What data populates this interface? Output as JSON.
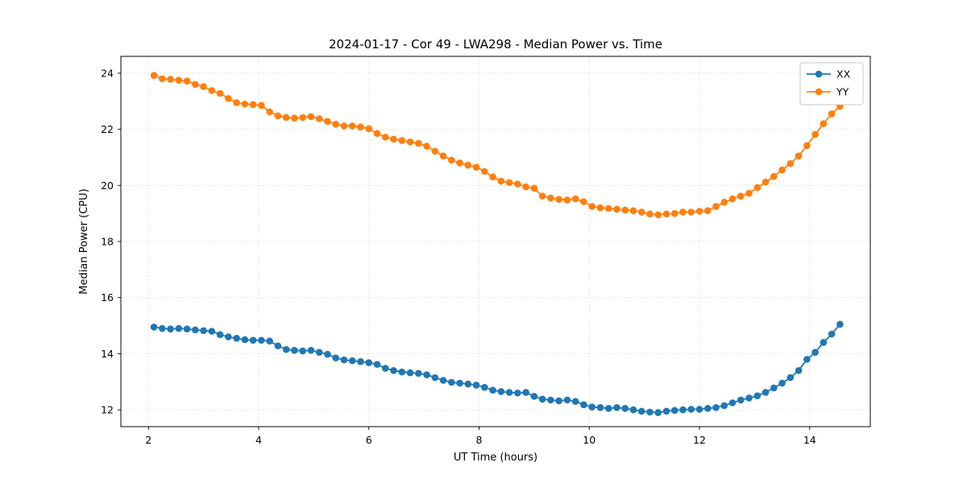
{
  "chart_data": {
    "type": "line",
    "title": "2024-01-17 - Cor 49 - LWA298 - Median Power vs. Time",
    "xlabel": "UT Time (hours)",
    "ylabel": "Median Power (CPU)",
    "xlim": [
      1.5,
      15.1
    ],
    "ylim": [
      11.4,
      24.6
    ],
    "xticks": [
      2,
      4,
      6,
      8,
      10,
      12,
      14
    ],
    "yticks": [
      12,
      14,
      16,
      18,
      20,
      22,
      24
    ],
    "grid": true,
    "legend_position": "upper right",
    "marker": "o",
    "x": [
      2.1,
      2.25,
      2.4,
      2.55,
      2.7,
      2.85,
      3.0,
      3.15,
      3.3,
      3.45,
      3.6,
      3.75,
      3.9,
      4.05,
      4.2,
      4.35,
      4.5,
      4.65,
      4.8,
      4.95,
      5.1,
      5.25,
      5.4,
      5.55,
      5.7,
      5.85,
      6.0,
      6.15,
      6.3,
      6.45,
      6.6,
      6.75,
      6.9,
      7.05,
      7.2,
      7.35,
      7.5,
      7.65,
      7.8,
      7.95,
      8.1,
      8.25,
      8.4,
      8.55,
      8.7,
      8.85,
      9.0,
      9.15,
      9.3,
      9.45,
      9.6,
      9.75,
      9.9,
      10.05,
      10.2,
      10.35,
      10.5,
      10.65,
      10.8,
      10.95,
      11.1,
      11.25,
      11.4,
      11.55,
      11.7,
      11.85,
      12.0,
      12.15,
      12.3,
      12.45,
      12.6,
      12.75,
      12.9,
      13.05,
      13.2,
      13.35,
      13.5,
      13.65,
      13.8,
      13.95,
      14.1,
      14.25,
      14.4,
      14.55
    ],
    "series": [
      {
        "name": "XX",
        "color": "#1f77b4",
        "values": [
          14.95,
          14.9,
          14.88,
          14.9,
          14.88,
          14.85,
          14.82,
          14.8,
          14.68,
          14.6,
          14.55,
          14.5,
          14.48,
          14.48,
          14.45,
          14.28,
          14.15,
          14.12,
          14.1,
          14.12,
          14.05,
          13.98,
          13.85,
          13.78,
          13.75,
          13.72,
          13.68,
          13.62,
          13.48,
          13.4,
          13.35,
          13.32,
          13.3,
          13.25,
          13.15,
          13.05,
          12.98,
          12.95,
          12.92,
          12.88,
          12.8,
          12.7,
          12.65,
          12.62,
          12.6,
          12.62,
          12.48,
          12.38,
          12.35,
          12.32,
          12.35,
          12.3,
          12.18,
          12.1,
          12.08,
          12.05,
          12.08,
          12.05,
          12.0,
          11.95,
          11.92,
          11.9,
          11.95,
          11.98,
          12.0,
          12.02,
          12.02,
          12.05,
          12.08,
          12.15,
          12.25,
          12.35,
          12.42,
          12.5,
          12.62,
          12.78,
          12.95,
          13.15,
          13.4,
          13.8,
          14.05,
          14.4,
          14.7,
          15.05
        ]
      },
      {
        "name": "YY",
        "color": "#ff7f0e",
        "values": [
          23.92,
          23.8,
          23.78,
          23.75,
          23.72,
          23.6,
          23.52,
          23.38,
          23.28,
          23.1,
          22.95,
          22.9,
          22.88,
          22.85,
          22.62,
          22.48,
          22.42,
          22.4,
          22.42,
          22.45,
          22.38,
          22.28,
          22.18,
          22.12,
          22.12,
          22.08,
          22.02,
          21.85,
          21.72,
          21.65,
          21.6,
          21.55,
          21.5,
          21.4,
          21.22,
          21.05,
          20.9,
          20.8,
          20.72,
          20.65,
          20.5,
          20.3,
          20.15,
          20.1,
          20.05,
          19.95,
          19.9,
          19.62,
          19.55,
          19.5,
          19.48,
          19.52,
          19.42,
          19.25,
          19.2,
          19.18,
          19.15,
          19.12,
          19.1,
          19.05,
          18.98,
          18.95,
          18.98,
          19.0,
          19.05,
          19.05,
          19.08,
          19.1,
          19.25,
          19.4,
          19.52,
          19.62,
          19.72,
          19.92,
          20.12,
          20.32,
          20.55,
          20.78,
          21.05,
          21.42,
          21.82,
          22.2,
          22.55,
          22.82
        ]
      }
    ]
  }
}
